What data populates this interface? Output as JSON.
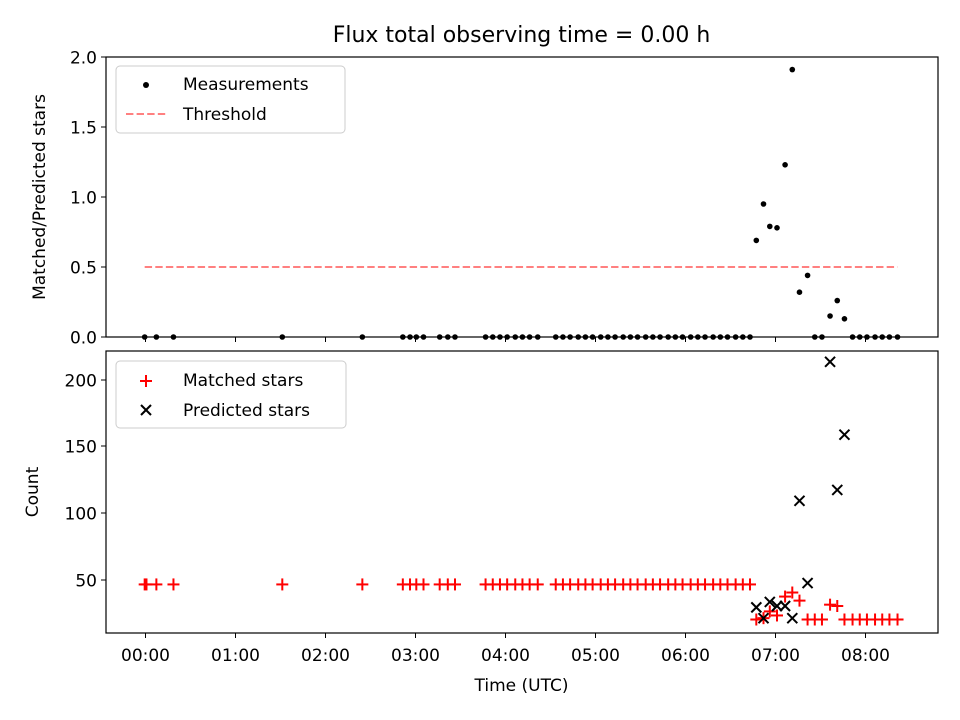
{
  "chart_data": [
    {
      "type": "scatter",
      "title": "Flux total observing time = 0.00 h",
      "ylabel": "Matched/Predicted stars",
      "xlim": [
        -0.43,
        8.82
      ],
      "ylim": [
        0,
        2.0
      ],
      "yticks": [
        "0.0",
        "0.5",
        "1.0",
        "1.5",
        "2.0"
      ],
      "grid": false,
      "legend_position": "top-left",
      "legend": [
        "Measurements",
        "Threshold"
      ],
      "colors": {
        "measurements": "#000000",
        "threshold": "#ff8080"
      },
      "series": [
        {
          "name": "Measurements",
          "x": [
            0.0,
            0.13,
            0.32,
            1.53,
            2.42,
            2.87,
            2.95,
            3.02,
            3.1,
            3.28,
            3.37,
            3.45,
            3.79,
            3.87,
            3.95,
            4.03,
            4.12,
            4.2,
            4.28,
            4.37,
            4.57,
            4.65,
            4.73,
            4.82,
            4.9,
            4.98,
            5.07,
            5.15,
            5.23,
            5.32,
            5.4,
            5.48,
            5.57,
            5.65,
            5.73,
            5.82,
            5.9,
            5.98,
            6.07,
            6.15,
            6.23,
            6.32,
            6.4,
            6.48,
            6.57,
            6.65,
            6.73,
            6.8,
            6.88,
            6.95,
            7.03,
            7.12,
            7.2,
            7.28,
            7.37,
            7.45,
            7.53,
            7.62,
            7.7,
            7.78,
            7.87,
            7.95,
            8.03,
            8.12,
            8.2,
            8.28,
            8.37
          ],
          "y": [
            0,
            0,
            0,
            0,
            0,
            0,
            0,
            0,
            0,
            0,
            0,
            0,
            0,
            0,
            0,
            0,
            0,
            0,
            0,
            0,
            0,
            0,
            0,
            0,
            0,
            0,
            0,
            0,
            0,
            0,
            0,
            0,
            0,
            0,
            0,
            0,
            0,
            0,
            0,
            0,
            0,
            0,
            0,
            0,
            0,
            0,
            0,
            0.69,
            0.95,
            0.79,
            0.78,
            1.23,
            1.91,
            0.32,
            0.44,
            0,
            0,
            0.15,
            0.26,
            0.13,
            0,
            0,
            0,
            0,
            0,
            0,
            0
          ]
        },
        {
          "name": "Threshold",
          "x": [
            0.0,
            8.37
          ],
          "y": [
            0.5,
            0.5
          ]
        }
      ]
    },
    {
      "type": "scatter",
      "xlabel": "Time (UTC)",
      "ylabel": "Count",
      "xlim": [
        -0.43,
        8.82
      ],
      "ylim": [
        11,
        220
      ],
      "yticks": [
        "50",
        "100",
        "150",
        "200"
      ],
      "xticks": [
        "00:00",
        "01:00",
        "02:00",
        "03:00",
        "04:00",
        "05:00",
        "06:00",
        "07:00",
        "08:00"
      ],
      "grid": false,
      "legend_position": "top-left",
      "legend": [
        "Matched stars",
        "Predicted stars"
      ],
      "colors": {
        "matched": "#ff0000",
        "predicted": "#000000"
      },
      "series": [
        {
          "name": "Matched stars",
          "x": [
            0.0,
            0.02,
            0.13,
            0.32,
            1.53,
            2.42,
            2.87,
            2.95,
            3.02,
            3.1,
            3.28,
            3.37,
            3.45,
            3.79,
            3.87,
            3.95,
            4.03,
            4.12,
            4.2,
            4.28,
            4.37,
            4.57,
            4.65,
            4.73,
            4.82,
            4.9,
            4.98,
            5.07,
            5.15,
            5.23,
            5.32,
            5.4,
            5.48,
            5.57,
            5.65,
            5.73,
            5.82,
            5.9,
            5.98,
            6.07,
            6.15,
            6.23,
            6.32,
            6.4,
            6.48,
            6.57,
            6.65,
            6.73,
            6.8,
            6.88,
            6.95,
            7.03,
            7.12,
            7.2,
            7.28,
            7.37,
            7.45,
            7.53,
            7.62,
            7.7,
            7.78,
            7.87,
            7.95,
            8.03,
            8.12,
            8.2,
            8.28,
            8.37
          ],
          "y": [
            47,
            47,
            47,
            47,
            47,
            47,
            47,
            47,
            47,
            47,
            47,
            47,
            47,
            47,
            47,
            47,
            47,
            47,
            47,
            47,
            47,
            47,
            47,
            47,
            47,
            47,
            47,
            47,
            47,
            47,
            47,
            47,
            47,
            47,
            47,
            47,
            47,
            47,
            47,
            47,
            47,
            47,
            47,
            47,
            47,
            47,
            47,
            47,
            21,
            22,
            27,
            24,
            38,
            41,
            35,
            21,
            21,
            21,
            32,
            31,
            21,
            21,
            21,
            21,
            21,
            21,
            21,
            21
          ]
        },
        {
          "name": "Predicted stars",
          "x": [
            6.8,
            6.88,
            6.95,
            7.03,
            7.12,
            7.2,
            7.28,
            7.37,
            7.62,
            7.7,
            7.78
          ],
          "y": [
            30,
            22,
            34,
            31,
            31,
            22,
            109,
            48,
            212,
            117,
            158
          ]
        }
      ]
    }
  ]
}
